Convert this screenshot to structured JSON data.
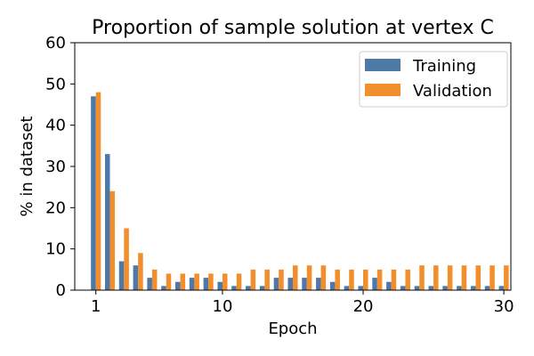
{
  "chart_data": {
    "type": "bar",
    "title": "Proportion of sample solution at vertex C",
    "xlabel": "Epoch",
    "ylabel": "% in dataset",
    "ylim": [
      0,
      60
    ],
    "xlim": [
      -0.5,
      30.5
    ],
    "yticks": [
      "0",
      "10",
      "20",
      "30",
      "40",
      "50",
      "60"
    ],
    "xticks": [
      {
        "x": 1,
        "label": "1"
      },
      {
        "x": 10,
        "label": "10"
      },
      {
        "x": 20,
        "label": "20"
      },
      {
        "x": 30,
        "label": "30"
      }
    ],
    "legend_position": "top-right",
    "x": [
      1,
      2,
      3,
      4,
      5,
      6,
      7,
      8,
      9,
      10,
      11,
      12,
      13,
      14,
      15,
      16,
      17,
      18,
      19,
      20,
      21,
      22,
      23,
      24,
      25,
      26,
      27,
      28,
      29,
      30
    ],
    "series": [
      {
        "name": "Training",
        "color": "#4e79a7",
        "values": [
          47,
          33,
          7,
          6,
          3,
          1,
          2,
          3,
          3,
          2,
          1,
          1,
          1,
          3,
          3,
          3,
          3,
          2,
          1,
          1,
          3,
          2,
          1,
          1,
          1,
          1,
          1,
          1,
          1,
          1
        ]
      },
      {
        "name": "Validation",
        "color": "#f28e2b",
        "values": [
          48,
          24,
          15,
          9,
          5,
          4,
          4,
          4,
          4,
          4,
          4,
          5,
          5,
          5,
          6,
          6,
          6,
          5,
          5,
          5,
          5,
          5,
          5,
          6,
          6,
          6,
          6,
          6,
          6,
          6
        ]
      }
    ]
  }
}
